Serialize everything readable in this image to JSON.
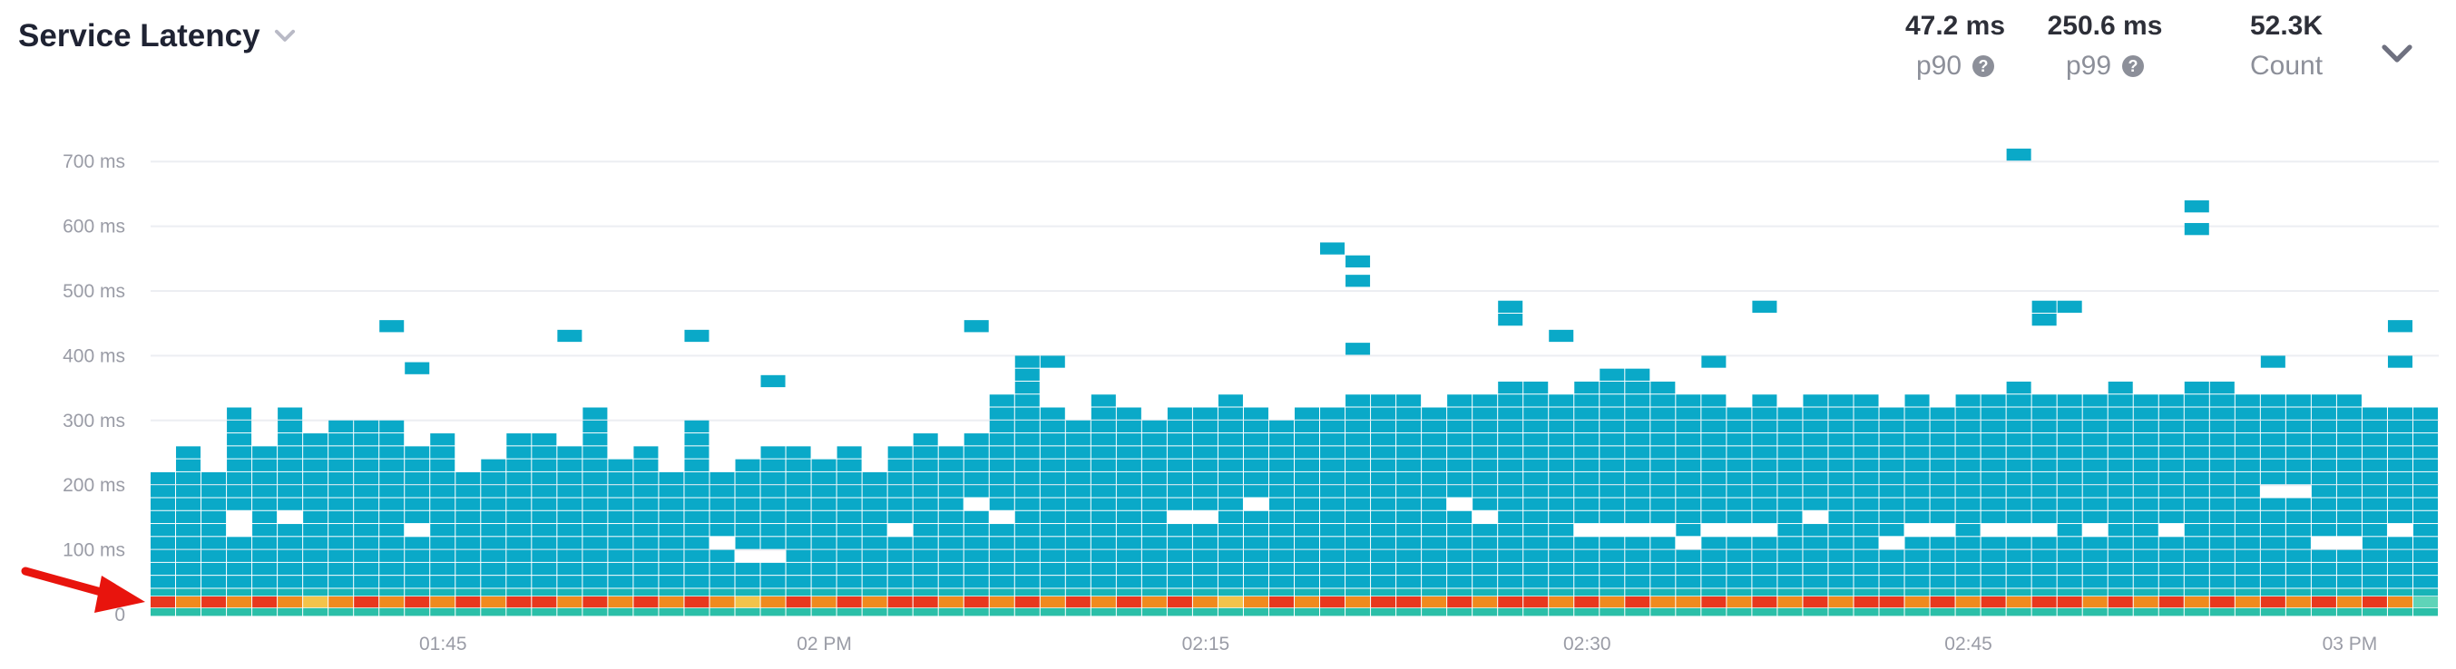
{
  "header": {
    "title": "Service Latency",
    "title_dropdown_icon": "chevron-down-icon",
    "collapse_icon": "chevron-down-icon"
  },
  "stats": [
    {
      "value": "47.2 ms",
      "label": "p90",
      "help_icon": "question-circle-icon"
    },
    {
      "value": "250.6 ms",
      "label": "p99",
      "help_icon": "question-circle-icon"
    },
    {
      "value": "52.3K",
      "label": "Count"
    }
  ],
  "chart_data": {
    "type": "heatmap",
    "title": "Service Latency",
    "xlabel": "",
    "ylabel": "",
    "x_tick_labels": [
      "01:45",
      "02 PM",
      "02:15",
      "02:30",
      "02:45",
      "03 PM"
    ],
    "y_tick_labels": [
      "0",
      "100 ms",
      "200 ms",
      "300 ms",
      "400 ms",
      "500 ms",
      "600 ms",
      "700 ms"
    ],
    "ylim": [
      0,
      720
    ],
    "bucket_size_ms": 20,
    "column_count": 90,
    "grid": true,
    "colors": {
      "cell": "#0aa9c8",
      "hot": "#e8381e",
      "warm": "#f08a1e",
      "mild": "#f3c34a",
      "cool": "#5fd4b8",
      "gridline": "#eceef2"
    },
    "column_top_ms": [
      215,
      260,
      225,
      310,
      260,
      320,
      270,
      295,
      290,
      300,
      260,
      275,
      220,
      240,
      280,
      275,
      250,
      315,
      245,
      255,
      215,
      295,
      220,
      240,
      265,
      260,
      245,
      250,
      220,
      260,
      270,
      265,
      275,
      345,
      395,
      320,
      290,
      340,
      325,
      290,
      310,
      320,
      330,
      315,
      305,
      320,
      310,
      330,
      330,
      335,
      315,
      330,
      340,
      360,
      350,
      345,
      365,
      380,
      370,
      355,
      345,
      330,
      320,
      330,
      320,
      330,
      330,
      340,
      325,
      335,
      325,
      345,
      335,
      350,
      345,
      330,
      340,
      355,
      335,
      345,
      350,
      360,
      340,
      330,
      335,
      330,
      330,
      325,
      320,
      310
    ],
    "column_low_band_color": [
      "hot",
      "warm",
      "hot",
      "warm",
      "hot",
      "warm",
      "mild",
      "warm",
      "hot",
      "warm",
      "hot",
      "warm",
      "hot",
      "warm",
      "hot",
      "hot",
      "warm",
      "hot",
      "warm",
      "hot",
      "warm",
      "hot",
      "warm",
      "mild",
      "warm",
      "hot",
      "warm",
      "hot",
      "warm",
      "hot",
      "hot",
      "warm",
      "hot",
      "warm",
      "hot",
      "warm",
      "hot",
      "warm",
      "hot",
      "warm",
      "hot",
      "warm",
      "mild",
      "warm",
      "hot",
      "warm",
      "hot",
      "warm",
      "hot",
      "hot",
      "warm",
      "hot",
      "warm",
      "hot",
      "hot",
      "warm",
      "hot",
      "warm",
      "hot",
      "warm",
      "warm",
      "hot",
      "warm",
      "hot",
      "warm",
      "hot",
      "warm",
      "hot",
      "hot",
      "warm",
      "hot",
      "warm",
      "hot",
      "warm",
      "hot",
      "hot",
      "warm",
      "hot",
      "warm",
      "hot",
      "warm",
      "hot",
      "warm",
      "hot",
      "warm",
      "hot",
      "warm",
      "hot",
      "warm",
      "cool"
    ],
    "outlier_cells": [
      {
        "col": 9,
        "ms": 445
      },
      {
        "col": 10,
        "ms": 380
      },
      {
        "col": 16,
        "ms": 430
      },
      {
        "col": 21,
        "ms": 430
      },
      {
        "col": 24,
        "ms": 360
      },
      {
        "col": 32,
        "ms": 445
      },
      {
        "col": 35,
        "ms": 390
      },
      {
        "col": 46,
        "ms": 565
      },
      {
        "col": 47,
        "ms": 545
      },
      {
        "col": 47,
        "ms": 515
      },
      {
        "col": 47,
        "ms": 410
      },
      {
        "col": 53,
        "ms": 475
      },
      {
        "col": 53,
        "ms": 455
      },
      {
        "col": 55,
        "ms": 430
      },
      {
        "col": 61,
        "ms": 390
      },
      {
        "col": 63,
        "ms": 475
      },
      {
        "col": 73,
        "ms": 710
      },
      {
        "col": 74,
        "ms": 475
      },
      {
        "col": 74,
        "ms": 455
      },
      {
        "col": 75,
        "ms": 475
      },
      {
        "col": 80,
        "ms": 630
      },
      {
        "col": 80,
        "ms": 595
      },
      {
        "col": 83,
        "ms": 390
      },
      {
        "col": 88,
        "ms": 445
      },
      {
        "col": 88,
        "ms": 390
      }
    ],
    "gap_cells": [
      {
        "col": 3,
        "ms": 130
      },
      {
        "col": 3,
        "ms": 150
      },
      {
        "col": 5,
        "ms": 150
      },
      {
        "col": 10,
        "ms": 130
      },
      {
        "col": 22,
        "ms": 110
      },
      {
        "col": 23,
        "ms": 90
      },
      {
        "col": 24,
        "ms": 90
      },
      {
        "col": 29,
        "ms": 130
      },
      {
        "col": 32,
        "ms": 170
      },
      {
        "col": 33,
        "ms": 150
      },
      {
        "col": 40,
        "ms": 150
      },
      {
        "col": 41,
        "ms": 150
      },
      {
        "col": 43,
        "ms": 170
      },
      {
        "col": 51,
        "ms": 170
      },
      {
        "col": 52,
        "ms": 150
      },
      {
        "col": 56,
        "ms": 130
      },
      {
        "col": 57,
        "ms": 130
      },
      {
        "col": 58,
        "ms": 130
      },
      {
        "col": 59,
        "ms": 130
      },
      {
        "col": 60,
        "ms": 110
      },
      {
        "col": 61,
        "ms": 130
      },
      {
        "col": 62,
        "ms": 130
      },
      {
        "col": 63,
        "ms": 130
      },
      {
        "col": 65,
        "ms": 150
      },
      {
        "col": 68,
        "ms": 110
      },
      {
        "col": 69,
        "ms": 130
      },
      {
        "col": 70,
        "ms": 130
      },
      {
        "col": 72,
        "ms": 130
      },
      {
        "col": 73,
        "ms": 130
      },
      {
        "col": 74,
        "ms": 130
      },
      {
        "col": 76,
        "ms": 130
      },
      {
        "col": 79,
        "ms": 130
      },
      {
        "col": 83,
        "ms": 190
      },
      {
        "col": 84,
        "ms": 190
      },
      {
        "col": 85,
        "ms": 110
      },
      {
        "col": 86,
        "ms": 110
      },
      {
        "col": 88,
        "ms": 130
      }
    ]
  }
}
